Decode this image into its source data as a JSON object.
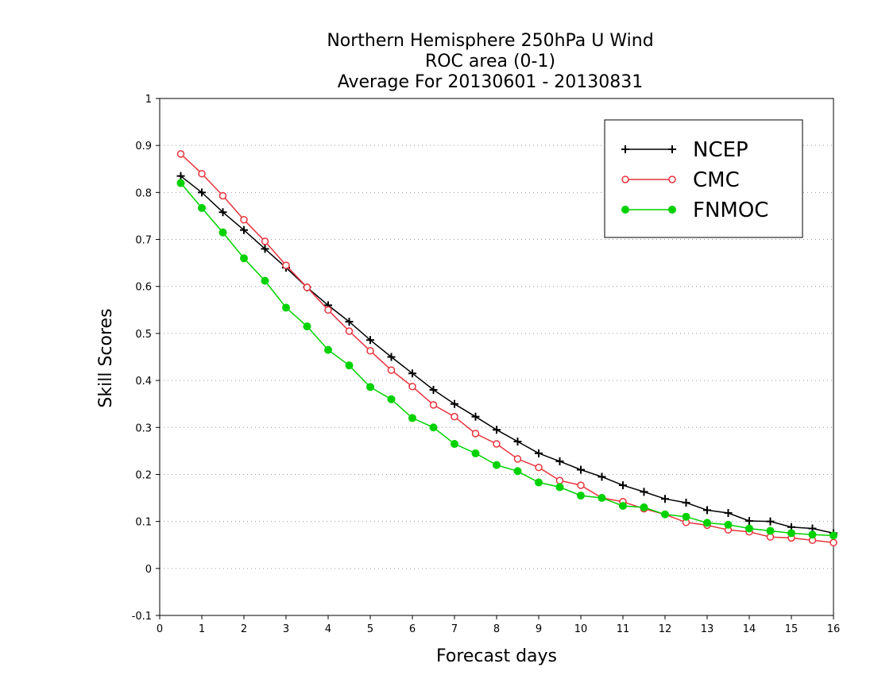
{
  "chart_data": {
    "type": "line",
    "title": [
      "Northern Hemisphere 250hPa U Wind",
      "ROC area (0-1)",
      "Average For 20130601 - 20130831"
    ],
    "xlabel": "Forecast days",
    "ylabel": "Skill Scores",
    "xlim": [
      0,
      16
    ],
    "ylim": [
      -0.1,
      1
    ],
    "xticks": [
      0,
      1,
      2,
      3,
      4,
      5,
      6,
      7,
      8,
      9,
      10,
      11,
      12,
      13,
      14,
      15,
      16
    ],
    "xtick_labels": [
      "0",
      "1",
      "2",
      "3",
      "4",
      "5",
      "6",
      "7",
      "8",
      "9",
      "10",
      "11",
      "12",
      "13",
      "14",
      "15",
      "16"
    ],
    "yticks": [
      -0.1,
      0,
      0.1,
      0.2,
      0.3,
      0.4,
      0.5,
      0.6,
      0.7,
      0.8,
      0.9,
      1
    ],
    "ytick_labels": [
      "-0.1",
      "0",
      "0.1",
      "0.2",
      "0.3",
      "0.4",
      "0.5",
      "0.6",
      "0.7",
      "0.8",
      "0.9",
      "1"
    ],
    "grid": "dotted horizontal",
    "legend": "top-right",
    "x": [
      0.5,
      1,
      1.5,
      2,
      2.5,
      3,
      3.5,
      4,
      4.5,
      5,
      5.5,
      6,
      6.5,
      7,
      7.5,
      8,
      8.5,
      9,
      9.5,
      10,
      10.5,
      11,
      11.5,
      12,
      12.5,
      13,
      13.5,
      14,
      14.5,
      15,
      15.5,
      16
    ],
    "series": [
      {
        "name": "NCEP",
        "color": "#000000",
        "marker": "plus",
        "values": [
          0.835,
          0.8,
          0.758,
          0.72,
          0.68,
          0.64,
          0.598,
          0.56,
          0.525,
          0.486,
          0.45,
          0.415,
          0.38,
          0.35,
          0.323,
          0.295,
          0.27,
          0.245,
          0.228,
          0.21,
          0.195,
          0.177,
          0.163,
          0.148,
          0.14,
          0.124,
          0.118,
          0.101,
          0.1,
          0.088,
          0.085,
          0.075
        ]
      },
      {
        "name": "CMC",
        "color": "#e8323c",
        "marker": "open-circle",
        "values": [
          0.882,
          0.84,
          0.793,
          0.742,
          0.696,
          0.645,
          0.598,
          0.55,
          0.505,
          0.463,
          0.422,
          0.387,
          0.348,
          0.323,
          0.287,
          0.265,
          0.233,
          0.215,
          0.187,
          0.177,
          0.15,
          0.142,
          0.127,
          0.115,
          0.098,
          0.092,
          0.082,
          0.078,
          0.067,
          0.065,
          0.06,
          0.055
        ]
      },
      {
        "name": "FNMOC",
        "color": "#00d200",
        "marker": "filled-circle",
        "values": [
          0.82,
          0.767,
          0.715,
          0.66,
          0.612,
          0.555,
          0.515,
          0.465,
          0.432,
          0.386,
          0.36,
          0.32,
          0.3,
          0.265,
          0.245,
          0.22,
          0.207,
          0.183,
          0.173,
          0.155,
          0.15,
          0.133,
          0.13,
          0.115,
          0.11,
          0.097,
          0.093,
          0.085,
          0.08,
          0.075,
          0.072,
          0.07
        ]
      }
    ]
  }
}
